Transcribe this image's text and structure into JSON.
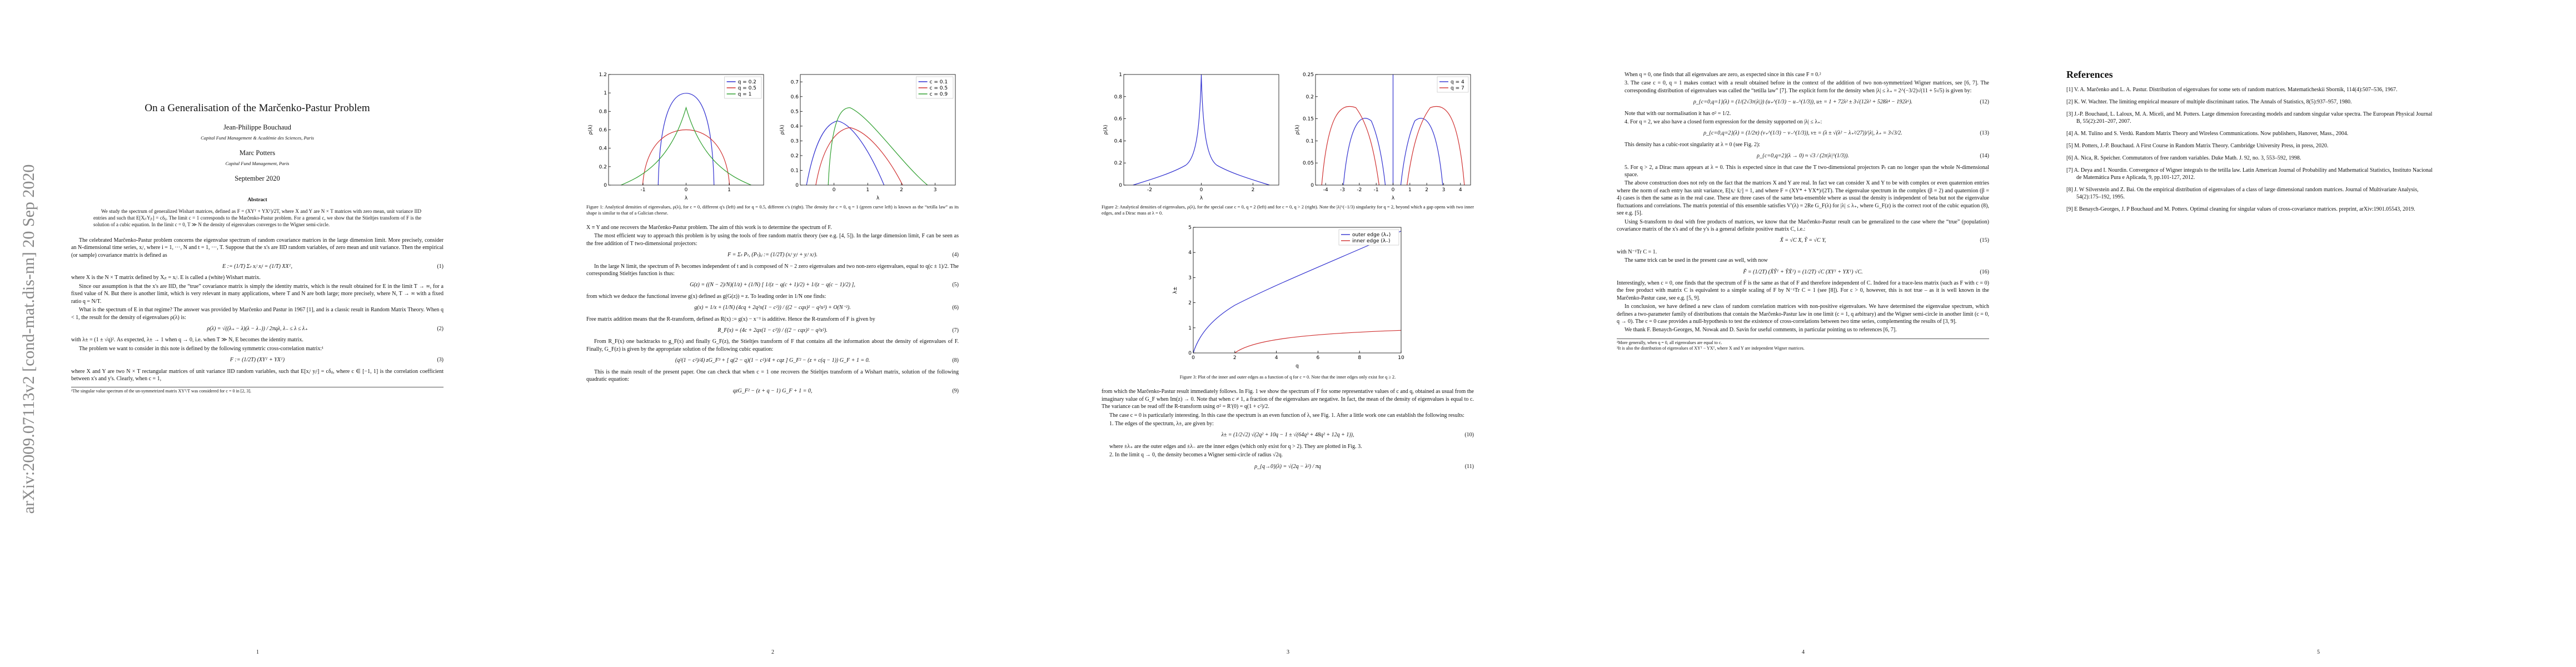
{
  "sidebar": "arXiv:2009.07113v2  [cond-mat.dis-nn]  20 Sep 2020",
  "page1": {
    "title": "On a Generalisation of the Marčenko-Pastur Problem",
    "author1": "Jean-Philippe Bouchaud",
    "affiliation1": "Capital Fund Management & Académie des Sciences, Paris",
    "author2": "Marc Potters",
    "affiliation2": "Capital Fund Management, Paris",
    "date": "September 2020",
    "abstract_heading": "Abstract",
    "abstract": "We study the spectrum of generalized Wishart matrices, defined as F = (XYᵀ + YXᵀ)/2T, where X and Y are N × T matrices with zero mean, unit variance IID entries and such that E[XᵢₜYⱼₜ] = cδᵢⱼ. The limit c = 1 corresponds to the Marčenko-Pastur problem. For a general c, we show that the Stieltjes transform of F is the solution of a cubic equation. In the limit c = 0, T ≫ N the density of eigenvalues converges to the Wigner semi-circle.",
    "p1": "The celebrated Marčenko-Pastur problem concerns the eigenvalue spectrum of random covariance matrices in the large dimension limit. More precisely, consider an N-dimensional time series, xᵢᵗ, where i = 1, ···, N and t = 1, ···, T. Suppose that the x's are IID random variables, of zero mean and unit variance. Then the empirical (or sample) covariance matrix is defined as",
    "eq1": "E := (1/T) Σₜ xᵢᵗ xⱼᵗ = (1/T) XXᵀ,",
    "eq1_num": "(1)",
    "p2": "where X is the N × T matrix defined by Xᵢₜ = xᵢᵗ. E is called a (white) Wishart matrix.",
    "p3": "Since our assumption is that the x's are IID, the “true” covariance matrix is simply the identity matrix, which is the result obtained for E in the limit T → ∞, for a fixed value of N. But there is another limit, which is very relevant in many applications, where T and N are both large; more precisely, where N, T → ∞ with a fixed ratio q = N/T.",
    "p4": "What is the spectrum of E in that regime? The answer was provided by Marčenko and Pastur in 1967 [1], and is a classic result in Random Matrix Theory. When q < 1, the result for the density of eigenvalues ρ(λ) is:",
    "eq2": "ρ(λ) = √((λ₊ − λ)(λ − λ₋)) / 2πqλ,      λ₋ ≤ λ ≤ λ₊",
    "eq2_num": "(2)",
    "p5": "with λ± = (1 ± √q)². As expected, λ± → 1 when q → 0, i.e. when T ≫ N, E becomes the identity matrix.",
    "p6": "The problem we want to consider in this note is defined by the following symmetric cross-correlation matrix:¹",
    "eq3": "F := (1/2T) (XYᵀ + YXᵀ)",
    "eq3_num": "(3)",
    "p7": "where X and Y are two N × T rectangular matrices of unit variance IID random variables, such that E[xᵢᵗ yⱼᵗ] = cδᵢⱼ, where c ∈ [−1, 1] is the correlation coefficient between x's and y's. Clearly, when c = 1,",
    "footnote": "¹The singular value spectrum of the un-symmetrized matrix XYᵀ/T was considered for c = 0 in [2, 3].",
    "number": "1"
  },
  "page2": {
    "p1": "X ≡ Y and one recovers the Marčenko-Pastur problem. The aim of this work is to determine the spectrum of F.",
    "p2": "The most efficient way to approach this problem is by using the tools of free random matrix theory (see e.g. [4, 5]). In the large dimension limit, F can be seen as the free addition of T two-dimensional projectors:",
    "eq4": "F = Σₜ Pₜ,      (Pₜ)ᵢⱼ := (1/2T) (xᵢᵗ yⱼᵗ + yᵢᵗ xⱼᵗ).",
    "eq4_num": "(4)",
    "p3": "In the large N limit, the spectrum of Pₜ becomes independent of t and is composed of N − 2 zero eigenvalues and two non-zero eigenvalues, equal to q(c ± 1)/2. The corresponding Stieltjes function is thus:",
    "eq5": "G(z) = ((N − 2)/N)(1/z) + (1/N) [ 1/(z − q(c + 1)/2) + 1/(z − q(c − 1)/2) ],",
    "eq5_num": "(5)",
    "p4": "from which we deduce the functional inverse g(x) defined as g(G(z)) = z. To leading order in 1/N one finds:",
    "eq6": "g(x) = 1/x + (1/N) (4cq + 2q²x(1 − c²)) / ((2 − cqx)² − q²x²) + O(N⁻²).",
    "eq6_num": "(6)",
    "p5": "Free matrix addition means that the R-transform, defined as R(x) := g(x) − x⁻¹ is additive. Hence the R-transform of F is given by",
    "eq7": "R_F(x) = (4c + 2qx(1 − c²)) / ((2 − cqx)² − q²x²).",
    "eq7_num": "(7)",
    "p6": "From R_F(x) one backtracks to g_F(x) and finally G_F(z), the Stieltjes transform of F that contains all the information about the density of eigenvalues of F. Finally, G_F(z) is given by the appropriate solution of the following cubic equation:",
    "eq8": "(q²(1 − c²)/4) zG_F³ + [ q(2 − q)(1 − c²)/4 + cqz ] G_F² − (z + c(q − 1)) G_F + 1 = 0.",
    "eq8_num": "(8)",
    "p7": "This is the main result of the present paper. One can check that when c = 1 one recovers the Stieltjes transform of a Wishart matrix, solution of the following quadratic equation:",
    "eq9": "qzG_F² − (z + q − 1) G_F + 1 = 0,",
    "eq9_num": "(9)",
    "number": "2"
  },
  "page3": {
    "p1": "from which the Marčenko-Pastur result immediately follows. In Fig. 1 we show the spectrum of F for some representative values of c and q, obtained as usual from the imaginary value of G_F when Im(z) → 0. Note that when c ≠ 1, a fraction of the eigenvalues are negative. In fact, the mean of the density of eigenvalues is equal to c. The variance can be read off the R-transform using σ² = R′(0) = q(1 + c²)/2.",
    "p2": "The case c = 0 is particularly interesting. In this case the spectrum is an even function of λ, see Fig. 1. After a little work one can establish the following results:",
    "item1": "1. The edges of the spectrum, λ±, are given by:",
    "eq10": "λ± = (1/2√2) √(2q² + 10q − 1 ± √(64q³ + 48q² + 12q + 1)),",
    "eq10_num": "(10)",
    "p3": "where ±λ₊ are the outer edges and ±λ₋ are the inner edges (which only exist for q > 2). They are plotted in Fig. 3.",
    "item2": "2. In the limit q → 0, the density becomes a Wigner semi-circle of radius √2q.",
    "eq11": "ρ_{q→0}(λ) = √(2q − λ²) / πq",
    "eq11_num": "(11)",
    "number": "3"
  },
  "page4": {
    "p0": "When q = 0, one finds that all eigenvalues are zero, as expected since in this case F ≡ 0.²",
    "item3": "3. The case c = 0, q = 1 makes contact with a result obtained before in the context of the addition of two non-symmetrized Wigner matrices, see [6, 7]. The corresponding distribution of eigenvalues was called the “tetilla law” [7]. The explicit form for the density when |λ| ≤ λ₊ = 2^(−3/2)√(11 + 5√5) is given by:",
    "eq12": "ρ_{c=0,q=1}(λ) = (1/(2√3π|λ|)) (u₊^(1/3) − u₋^(1/3)),   u± = 1 + 72λ² ± 3√(12λ² + 528λ⁴ − 192λ⁶).",
    "eq12_num": "(12)",
    "p1": "Note that with our normalisation it has σ² = 1/2.",
    "item4": "4. For q = 2, we also have a closed form expression for the density supported on |λ| ≤ λ₊:",
    "eq13": "ρ_{c=0,q=2}(λ) = (1/2π) (v₊^(1/3) − v₋^(1/3)),   v± = (λ ± √(λ² − λ₊²/27))/|λ|,   λ₊ = 3√3/2.",
    "eq13_num": "(13)",
    "p2": "This density has a cubic-root singularity at λ = 0 (see Fig. 2):",
    "eq14": "ρ_{c=0,q=2}(λ → 0) ≈ √3 / (2π|λ|^(1/3)).",
    "eq14_num": "(14)",
    "item5": "5. For q > 2, a Dirac mass appears at λ = 0. This is expected since in that case the T two-dimensional projectors Pₜ can no longer span the whole N-dimensional space.",
    "p3": "The above construction does not rely on the fact that the matrices X and Y are real. In fact we can consider X and Y to be with complex or even quaternion entries where the norm of each entry has unit variance, E[xᵢᵗ x̄ᵢᵗ] = 1, and where F = (XY* + YX*)/(2T). The eigenvalue spectrum in the complex (β = 2) and quaternion (β = 4) cases is then the same as in the real case. These are three cases of the same beta-ensemble where as usual the density is independent of beta but not the eigenvalue fluctuations and correlations. The matrix potential of this ensemble satisfies V′(λ) = 2Re G_F(λ) for |λ| ≤ λ₊, where G_F(z) is the correct root of the cubic equation (8), see e.g. [5].",
    "p4": "Using S-transform to deal with free products of matrices, we know that the Marčenko-Pastur result can be generalized to the case where the “true” (population) covariance matrix of the x's and of the y's is a general definite positive matrix C, i.e.:",
    "eq15": "X̃ = √C X,      Ỹ = √C Y,",
    "eq15_num": "(15)",
    "p5": "with N⁻¹Tr C = 1.",
    "p6": "The same trick can be used in the present case as well, with now",
    "eq16": "F̃ = (1/2T) (X̃Ỹᵀ + ỸX̃ᵀ) = (1/2T) √C (XYᵀ + YXᵀ) √C.",
    "eq16_num": "(16)",
    "p7": "Interestingly, when c = 0, one finds that the spectrum of F̃ is the same as that of F and therefore independent of C. Indeed for a trace-less matrix (such as F with c = 0) the free product with matrix C is equivalent to a simple scaling of F by N⁻¹Tr C = 1 (see [8]). For c > 0, however, this is not true – as it is well known in the Marčenko-Pastur case, see e.g. [5, 9].",
    "p8": "In conclusion, we have defined a new class of random correlation matrices with non-positive eigenvalues. We have determined the eigenvalue spectrum, which defines a two-parameter family of distributions that contain the Marčenko-Pastur law in one limit (c = 1, q arbitrary) and the Wigner semi-circle in another limit (c = 0, q → 0). The c = 0 case provides a null-hypothesis to test the existence of cross-correlations between two time series, complementing the results of [3, 9].",
    "p9": "We thank F. Benaych-Georges, M. Nowak and D. Savin for useful comments, in particular pointing us to references [6, 7].",
    "footnote2": "²More generally, when q = 0, all eigenvalues are equal to c.",
    "footnote3": "³It is also the distribution of eigenvalues of XYᵀ − YXᵀ, where X and Y are independent Wigner matrices.",
    "number": "4"
  },
  "page5": {
    "heading": "References",
    "refs": [
      "[1] V. A. Marčenko and L. A. Pastur. Distribution of eigenvalues for some sets of random matrices. Matematicheskii Sbornik, 114(4):507–536, 1967.",
      "[2] K. W. Wachter. The limiting empirical measure of multiple discriminant ratios. The Annals of Statistics, 8(5):937–957, 1980.",
      "[3] J.-P. Bouchaud, L. Laloux, M. A. Miceli, and M. Potters. Large dimension forecasting models and random singular value spectra. The European Physical Journal B, 55(2):201–207, 2007.",
      "[4] A. M. Tulino and S. Verdú. Random Matrix Theory and Wireless Communications. Now publishers, Hanover, Mass., 2004.",
      "[5] M. Potters, J.-P. Bouchaud. A First Course in Random Matrix Theory. Cambridge University Press, in press, 2020.",
      "[6] A. Nica, R. Speicher. Commutators of free random variables. Duke Math. J. 92, no. 3, 553–592, 1998.",
      "[7] A. Deya and I. Nourdin. Convergence of Wigner integrals to the tetilla law. Latin American Journal of Probability and Mathematical Statistics, Instituto Nacional de Matemática Pura e Aplicada, 9, pp.101-127, 2012.",
      "[8] J. W Silverstein and Z. Bai. On the empirical distribution of eigenvalues of a class of large dimensional random matrices. Journal of Multivariate Analysis, 54(2):175–192, 1995.",
      "[9] E Benaych-Georges, J. P Bouchaud and M. Potters. Optimal cleaning for singular values of cross-covariance matrices. preprint, arXiv:1901.05543, 2019."
    ],
    "number": "5"
  },
  "figures": {
    "fig1": {
      "caption": "Figure 1: Analytical densities of eigenvalues, ρ(λ), for c = 0, different q's (left) and for q = 0.5, different c's (right). The density for c = 0, q = 1 (green curve left) is known as the “tetilla law” as its shape is similar to that of a Galician cheese.",
      "panels": [
        {
          "xlim": [
            -1.8,
            1.8
          ],
          "xticks": [
            -1,
            0,
            1
          ],
          "ylim": [
            0,
            1.2
          ],
          "yticks": [
            0,
            0.2,
            0.4,
            0.6,
            0.8,
            1,
            1.2
          ],
          "xlabel": "λ",
          "ylabel": "ρ(λ)",
          "legend": [
            {
              "name": "q = 0.2",
              "color": "#3030d0"
            },
            {
              "name": "q = 0.5",
              "color": "#d03030"
            },
            {
              "name": "q = 1",
              "color": "#30a030"
            }
          ]
        },
        {
          "xlim": [
            -1,
            3.6
          ],
          "xticks": [
            0,
            1,
            2,
            3
          ],
          "ylim": [
            0,
            0.75
          ],
          "yticks": [
            0,
            0.1,
            0.2,
            0.3,
            0.4,
            0.5,
            0.6,
            0.7
          ],
          "xlabel": "λ",
          "ylabel": "ρ(λ)",
          "legend": [
            {
              "name": "c = 0.1",
              "color": "#3030d0"
            },
            {
              "name": "c = 0.5",
              "color": "#d03030"
            },
            {
              "name": "c = 0.9",
              "color": "#30a030"
            }
          ]
        }
      ]
    },
    "fig2": {
      "caption": "Figure 2: Analytical densities of eigenvalues, ρ(λ), for the special case c = 0, q = 2 (left) and for c = 0, q > 2 (right). Note the |λ|^(−1/3) singularity for q = 2, beyond which a gap opens with two inner edges, and a Dirac mass at λ = 0.",
      "panels": [
        {
          "xlim": [
            -3,
            3
          ],
          "xticks": [
            -2,
            0,
            2
          ],
          "ylim": [
            0,
            1
          ],
          "yticks": [
            0,
            0.2,
            0.4,
            0.6,
            0.8,
            1
          ],
          "xlabel": "λ",
          "ylabel": "ρ(λ)",
          "legend": []
        },
        {
          "xlim": [
            -4.6,
            4.6
          ],
          "xticks": [
            -4,
            -3,
            -2,
            -1,
            0,
            1,
            2,
            3,
            4
          ],
          "ylim": [
            0,
            0.25
          ],
          "yticks": [
            0,
            0.05,
            0.1,
            0.15,
            0.2,
            0.25
          ],
          "xlabel": "λ",
          "ylabel": "ρ(λ)",
          "legend": [
            {
              "name": "q = 4",
              "color": "#3030d0"
            },
            {
              "name": "q = 7",
              "color": "#d03030"
            }
          ]
        }
      ]
    },
    "fig3": {
      "caption": "Figure 3: Plot of the inner and outer edges as a function of q for c = 0. Note that the inner edges only exist for q ≥ 2.",
      "panels": [
        {
          "xlim": [
            0,
            10
          ],
          "xticks": [
            0,
            2,
            4,
            6,
            8,
            10
          ],
          "ylim": [
            0,
            5
          ],
          "yticks": [
            0,
            1,
            2,
            3,
            4,
            5
          ],
          "xlabel": "q",
          "ylabel": "λ±",
          "legend": [
            {
              "name": "outer edge (λ₊)",
              "color": "#3030d0"
            },
            {
              "name": "inner edge (λ₋)",
              "color": "#d03030"
            }
          ]
        }
      ]
    }
  }
}
